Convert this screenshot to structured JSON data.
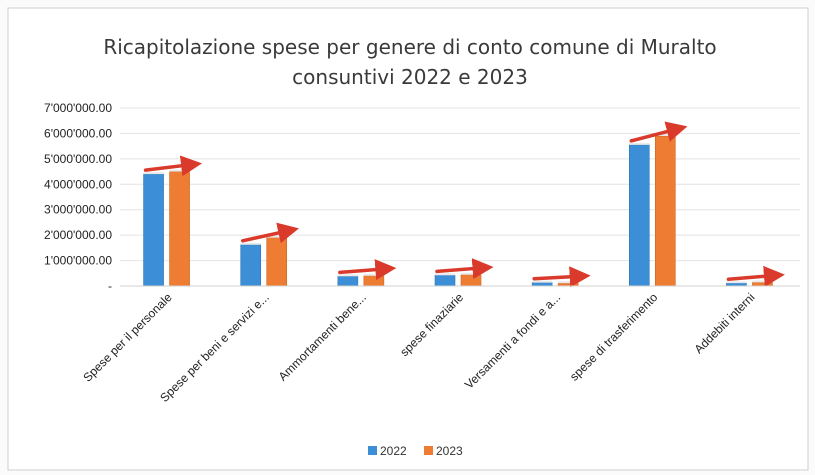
{
  "chart_data": {
    "type": "bar",
    "title": "Ricapitolazione spese per genere di conto comune di Muralto",
    "subtitle": "consuntivi 2022 e 2023",
    "categories": [
      "Spese per il personale",
      "Spese per beni e servizi e...",
      "Ammortamenti bene...",
      "spese finaziarie",
      "Versamenti a fondi e a...",
      "spese di trasferimento",
      "Addebiti interni"
    ],
    "series": [
      {
        "name": "2022",
        "color": "#3c8fd6",
        "values": [
          4400000,
          1620000,
          380000,
          420000,
          130000,
          5550000,
          110000
        ]
      },
      {
        "name": "2023",
        "color": "#ee7d33",
        "values": [
          4500000,
          1900000,
          400000,
          440000,
          110000,
          5900000,
          140000
        ]
      }
    ],
    "y_ticks": [
      "-",
      "1'000'000.00",
      "2'000'000.00",
      "3'000'000.00",
      "4'000'000.00",
      "5'000'000.00",
      "6'000'000.00",
      "7'000'000.00"
    ],
    "ylim": [
      0,
      7000000
    ],
    "grid": true,
    "legend_position": "bottom",
    "arrow_color": "#d93a2b"
  }
}
